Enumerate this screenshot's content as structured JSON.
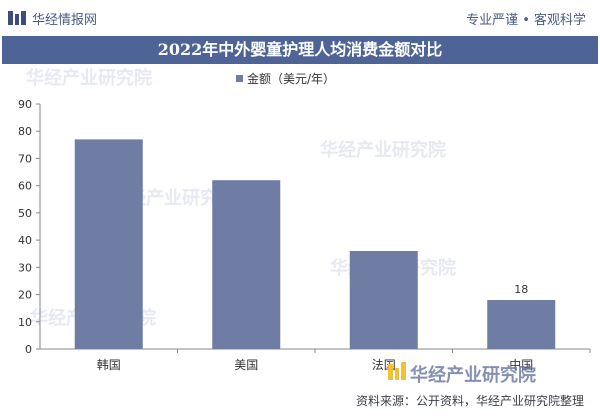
{
  "header": {
    "brand": "华经情报网",
    "tagline": "专业严谨 • 客观科学"
  },
  "title": "2022年中外婴童护理人均消费金额对比",
  "footer": {
    "brand": "华经产业研究院",
    "source": "资料来源：公开资料，华经产业研究院整理"
  },
  "colors": {
    "bar": "#6f7ca4",
    "band": "#4f6496",
    "accent": "#4a5a86"
  },
  "chart_data": {
    "type": "bar",
    "categories": [
      "韩国",
      "美国",
      "法国",
      "中国"
    ],
    "series": [
      {
        "name": "金额（美元/年）",
        "values": [
          77,
          62,
          36,
          18
        ]
      }
    ],
    "data_labels": [
      "",
      "",
      "",
      "18"
    ],
    "ylim": [
      0,
      90
    ],
    "yticks": [
      "0",
      "10",
      "20",
      "30",
      "40",
      "50",
      "60",
      "70",
      "80",
      "90"
    ],
    "legend_position": "top-center",
    "grid": false
  }
}
